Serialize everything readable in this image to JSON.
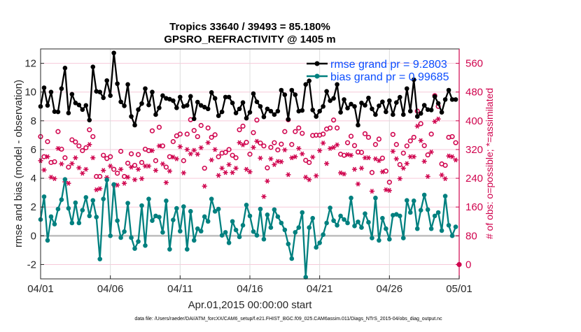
{
  "chart_data": {
    "type": "line",
    "title": [
      "Tropics 33640 / 39493 = 85.180%",
      "GPSRO_REFRACTIVITY @ 1405 m"
    ],
    "xlabel": "Apr.01,2015 00:00:00 start",
    "ylabel_left": "rmse and bias (model - observation)",
    "ylabel_right": "# of obs: o=possible; *=assimilated",
    "footer": "data file: /Users/raeder/DAI/ATM_forcXX/CAM6_setup/f.e21.FHIST_BGC.f09_025.CAM6assim.011/Diags_NTrS_2015-04/obs_diag_output.nc",
    "x_tick_labels": [
      "04/01",
      "04/06",
      "04/11",
      "04/16",
      "04/21",
      "04/26",
      "05/01"
    ],
    "x_start": "2015-04-01 00:00",
    "x_step_hours": 6,
    "ylim_left": [
      -3,
      13
    ],
    "yticks_left": [
      -2,
      0,
      2,
      4,
      6,
      8,
      10,
      12
    ],
    "ylim_right": [
      -40,
      600
    ],
    "yticks_right": [
      0,
      80,
      160,
      240,
      320,
      400,
      480,
      560
    ],
    "grid": true,
    "legend_placement": "top-right",
    "legend": [
      "rmse grand pr = 9.2803",
      "bias grand pr = 0.99685"
    ],
    "colors": {
      "rmse": "#000000",
      "bias": "#00807f",
      "obs_count": "#d0044e",
      "legend_text": "#0a4dff",
      "zero_line": "#bdbdbd"
    },
    "series": [
      {
        "name": "rmse grand pr = 9.2803",
        "axis": "left",
        "marker": "filled-circle",
        "values": [
          9.0,
          10.3,
          9.07,
          10.0,
          8.64,
          8.62,
          10.24,
          11.67,
          8.54,
          9.85,
          9.24,
          9.1,
          8.78,
          9.07,
          8.05,
          11.75,
          10.05,
          10.0,
          9.6,
          10.8,
          9.75,
          12.72,
          10.58,
          9.32,
          9.04,
          10.53,
          8.3,
          7.7,
          8.78,
          9.2,
          10.24,
          9.1,
          10.0,
          8.43,
          8.9,
          9.75,
          9.56,
          9.5,
          9.4,
          8.9,
          9.65,
          9.0,
          9.07,
          9.7,
          8.14,
          9.3,
          9.07,
          8.95,
          8.83,
          9.97,
          9.56,
          8.35,
          8.62,
          9.65,
          9.65,
          9.24,
          8.54,
          8.83,
          9.27,
          8.18,
          8.59,
          9.89,
          9.32,
          9.0,
          8.27,
          8.83,
          8.67,
          8.43,
          8.67,
          10.13,
          9.81,
          8.1,
          10.13,
          9.81,
          8.67,
          8.72,
          10.53,
          10.78,
          8.75,
          8.3,
          8.67,
          9.0,
          10.05,
          9.4,
          9.56,
          10.53,
          8.59,
          9.48,
          8.88,
          9.16,
          9.0,
          7.7,
          9.24,
          9.08,
          9.59,
          8.83,
          8.43,
          9.04,
          9.32,
          8.62,
          9.4,
          8.43,
          9.27,
          9.64,
          8.43,
          10.24,
          8.67,
          10.86,
          8.3,
          8.51,
          9.08,
          8.78,
          8.75,
          9.69,
          9.21,
          8.59,
          9.48,
          10.13,
          9.48,
          9.48,
          null
        ]
      },
      {
        "name": "bias grand pr = 0.99685",
        "axis": "left",
        "marker": "filled-circle",
        "values": [
          1.13,
          2.72,
          -0.32,
          1.33,
          0.81,
          1.86,
          2.51,
          3.92,
          1.91,
          0.89,
          2.3,
          0.89,
          1.78,
          2.67,
          1.38,
          2.46,
          1.3,
          -1.62,
          2.56,
          3.89,
          0.0,
          3.57,
          1.05,
          -0.13,
          0.29,
          2.27,
          -0.13,
          -0.89,
          -0.4,
          2.1,
          -0.68,
          2.56,
          1.05,
          1.38,
          1.3,
          0.24,
          2.43,
          -0.94,
          1.1,
          1.91,
          0.32,
          2.03,
          -0.94,
          1.7,
          -0.32,
          0.49,
          0.32,
          1.33,
          1.0,
          2.56,
          1.7,
          1.86,
          0.03,
          0.24,
          -0.49,
          1.0,
          0.4,
          -0.08,
          0.73,
          2.14,
          1.38,
          0.29,
          0.03,
          1.86,
          -0.24,
          1.46,
          0.57,
          1.82,
          1.33,
          0.89,
          0.41,
          -0.57,
          -1.59,
          0.24,
          0.57,
          1.62,
          -2.88,
          0.57,
          1.22,
          -0.81,
          -0.49,
          0.08,
          0.89,
          1.94,
          1.05,
          0.73,
          1.38,
          1.13,
          0.89,
          2.63,
          0.68,
          0.97,
          0.57,
          1.54,
          0.94,
          -0.16,
          2.63,
          -0.32,
          1.22,
          0.49,
          -0.24,
          1.43,
          1.49,
          1.38,
          -0.16,
          2.46,
          1.62,
          2.43,
          0.49,
          1.78,
          2.84,
          1.82,
          0.49,
          1.38,
          1.62,
          0.36,
          2.76,
          0.73,
          0.0,
          0.62,
          null
        ]
      },
      {
        "axis": "right",
        "marker": "open-circle",
        "role": "possible",
        "values": [
          356,
          300,
          342,
          284,
          286,
          370,
          321,
          297,
          271,
          347,
          341,
          330,
          317,
          325,
          375,
          356,
          245,
          245,
          304,
          295,
          300,
          265,
          254,
          315,
          245,
          282,
          308,
          276,
          306,
          284,
          321,
          317,
          372,
          289,
          382,
          330,
          271,
          300,
          342,
          358,
          363,
          289,
          363,
          403,
          373,
          356,
          387,
          268,
          380,
          354,
          361,
          300,
          310,
          312,
          320,
          304,
          297,
          375,
          385,
          340,
          307,
          367,
          402,
          338,
          330,
          269,
          326,
          339,
          319,
          335,
          370,
          403,
          334,
          370,
          380,
          365,
          290,
          284,
          359,
          360,
          360,
          363,
          377,
          380,
          402,
          380,
          307,
          304,
          339,
          357,
          331,
          313,
          312,
          364,
          354,
          256,
          334,
          349,
          296,
          260,
          229,
          362,
          334,
          278,
          310,
          330,
          344,
          354,
          427,
          392,
          331,
          305,
          363,
          470,
          440,
          280,
          276,
          354,
          356,
          339,
          0
        ]
      },
      {
        "axis": "right",
        "marker": "asterisk",
        "role": "assimilated",
        "values": [
          289,
          263,
          300,
          243,
          239,
          323,
          280,
          230,
          226,
          281,
          297,
          269,
          254,
          265,
          334,
          297,
          208,
          211,
          262,
          242,
          274,
          221,
          221,
          265,
          226,
          243,
          271,
          236,
          265,
          239,
          274,
          274,
          317,
          262,
          330,
          280,
          228,
          260,
          299,
          294,
          328,
          255,
          320,
          308,
          318,
          307,
          325,
          218,
          339,
          291,
          320,
          248,
          268,
          256,
          278,
          256,
          268,
          339,
          333,
          265,
          258,
          326,
          343,
          296,
          189,
          232,
          294,
          278,
          287,
          286,
          319,
          250,
          297,
          300,
          323,
          308,
          243,
          236,
          299,
          247,
          317,
          338,
          281,
          323,
          326,
          333,
          255,
          252,
          306,
          304,
          265,
          224,
          268,
          297,
          297,
          204,
          294,
          289,
          258,
          208,
          206,
          315,
          294,
          239,
          268,
          281,
          300,
          300,
          385,
          345,
          287,
          245,
          313,
          398,
          405,
          249,
          239,
          302,
          300,
          291,
          0
        ]
      }
    ]
  }
}
